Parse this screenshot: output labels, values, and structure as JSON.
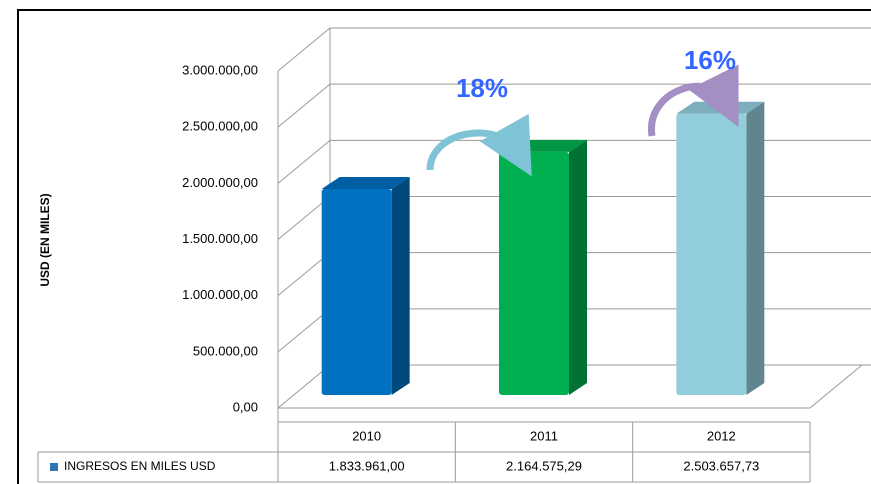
{
  "chart_data": {
    "type": "bar",
    "ylabel": "USD (EN MILES)",
    "categories": [
      "2010",
      "2011",
      "2012"
    ],
    "series": [
      {
        "name": "INGRESOS EN MILES USD",
        "color": "#2e75b6",
        "colors": [
          "#0070c0",
          "#00b050",
          "#92cddc"
        ],
        "values": [
          1833961.0,
          2164575.29,
          2503657.73
        ],
        "value_labels": [
          "1.833.961,00",
          "2.164.575,29",
          "2.503.657,73"
        ]
      }
    ],
    "ylim": [
      0,
      3000000
    ],
    "yticks": [
      {
        "value": 0,
        "label": "0,00"
      },
      {
        "value": 500000,
        "label": "500.000,00"
      },
      {
        "value": 1000000,
        "label": "1.000.000,00"
      },
      {
        "value": 1500000,
        "label": "1.500.000,00"
      },
      {
        "value": 2000000,
        "label": "2.000.000,00"
      },
      {
        "value": 2500000,
        "label": "2.500.000,00"
      },
      {
        "value": 3000000,
        "label": "3.000.000,00"
      }
    ],
    "grid": true,
    "annotations": [
      "18%",
      "16%"
    ]
  }
}
